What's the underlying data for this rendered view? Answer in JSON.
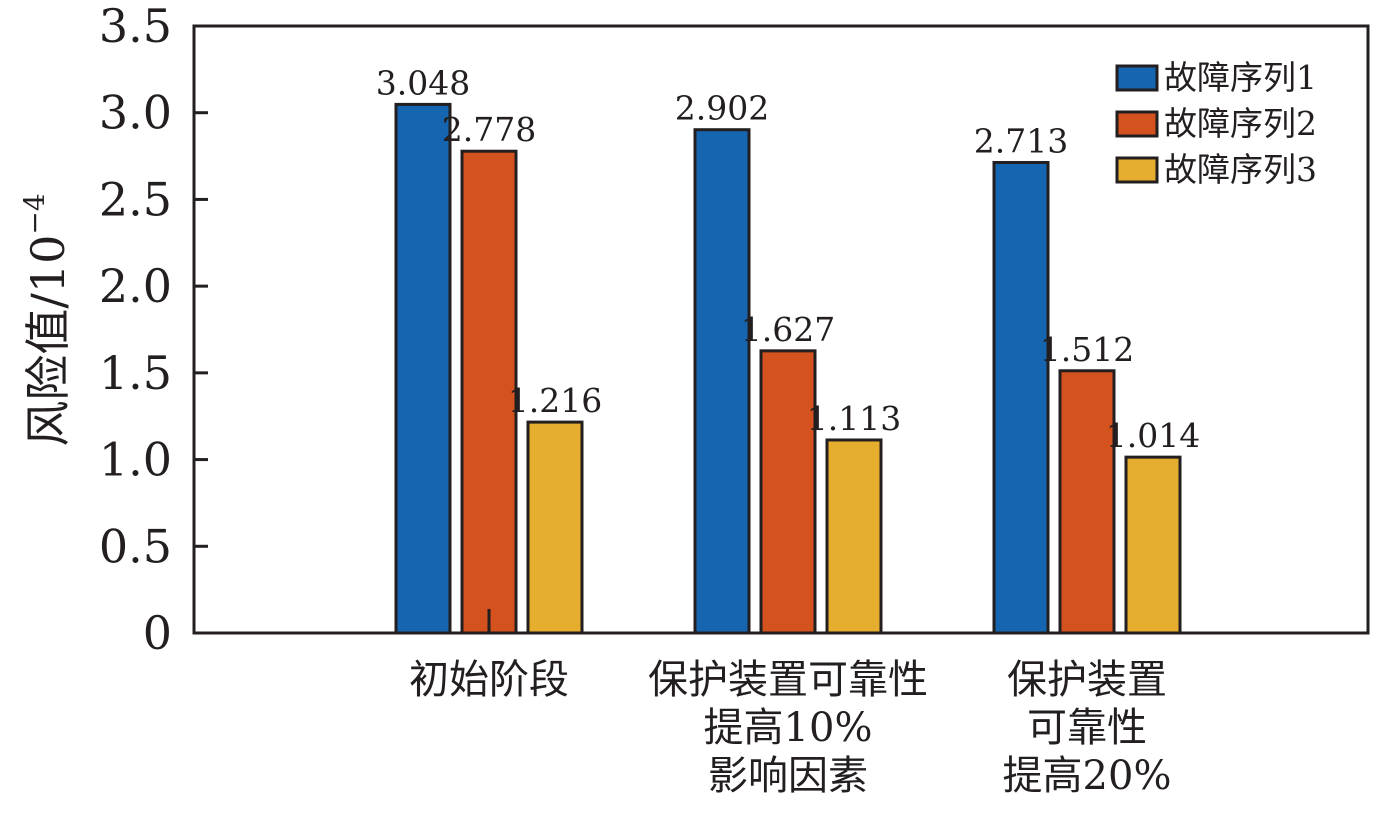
{
  "chart_data": {
    "type": "bar",
    "categories": [
      [
        "初始阶段"
      ],
      [
        "保护装置可靠性",
        "提高10%",
        "影响因素"
      ],
      [
        "保护装置",
        "可靠性",
        "提高20%"
      ]
    ],
    "series": [
      {
        "name": "故障序列1",
        "values": [
          3.048,
          2.902,
          2.713
        ],
        "labels": [
          "3.048",
          "2.902",
          "2.713"
        ],
        "color": "#1565b0"
      },
      {
        "name": "故障序列2",
        "values": [
          2.778,
          1.627,
          1.512
        ],
        "labels": [
          "2.778",
          "1.627",
          "1.512"
        ],
        "color": "#d4521d"
      },
      {
        "name": "故障序列3",
        "values": [
          1.216,
          1.113,
          1.014
        ],
        "labels": [
          "1.216",
          "1.113",
          "1.014"
        ],
        "color": "#e6ae2e"
      }
    ],
    "ylabel": "风险值/10",
    "ylabel_exponent": "−4",
    "ylim": [
      0,
      3.5
    ],
    "yticks": [
      0,
      0.5,
      1.0,
      1.5,
      2.0,
      2.5,
      3.0,
      3.5
    ],
    "ytick_labels": [
      "0",
      "0.5",
      "1.0",
      "1.5",
      "2.0",
      "2.5",
      "3.0",
      "3.5"
    ],
    "grid": false,
    "legend_position": "top-right"
  }
}
